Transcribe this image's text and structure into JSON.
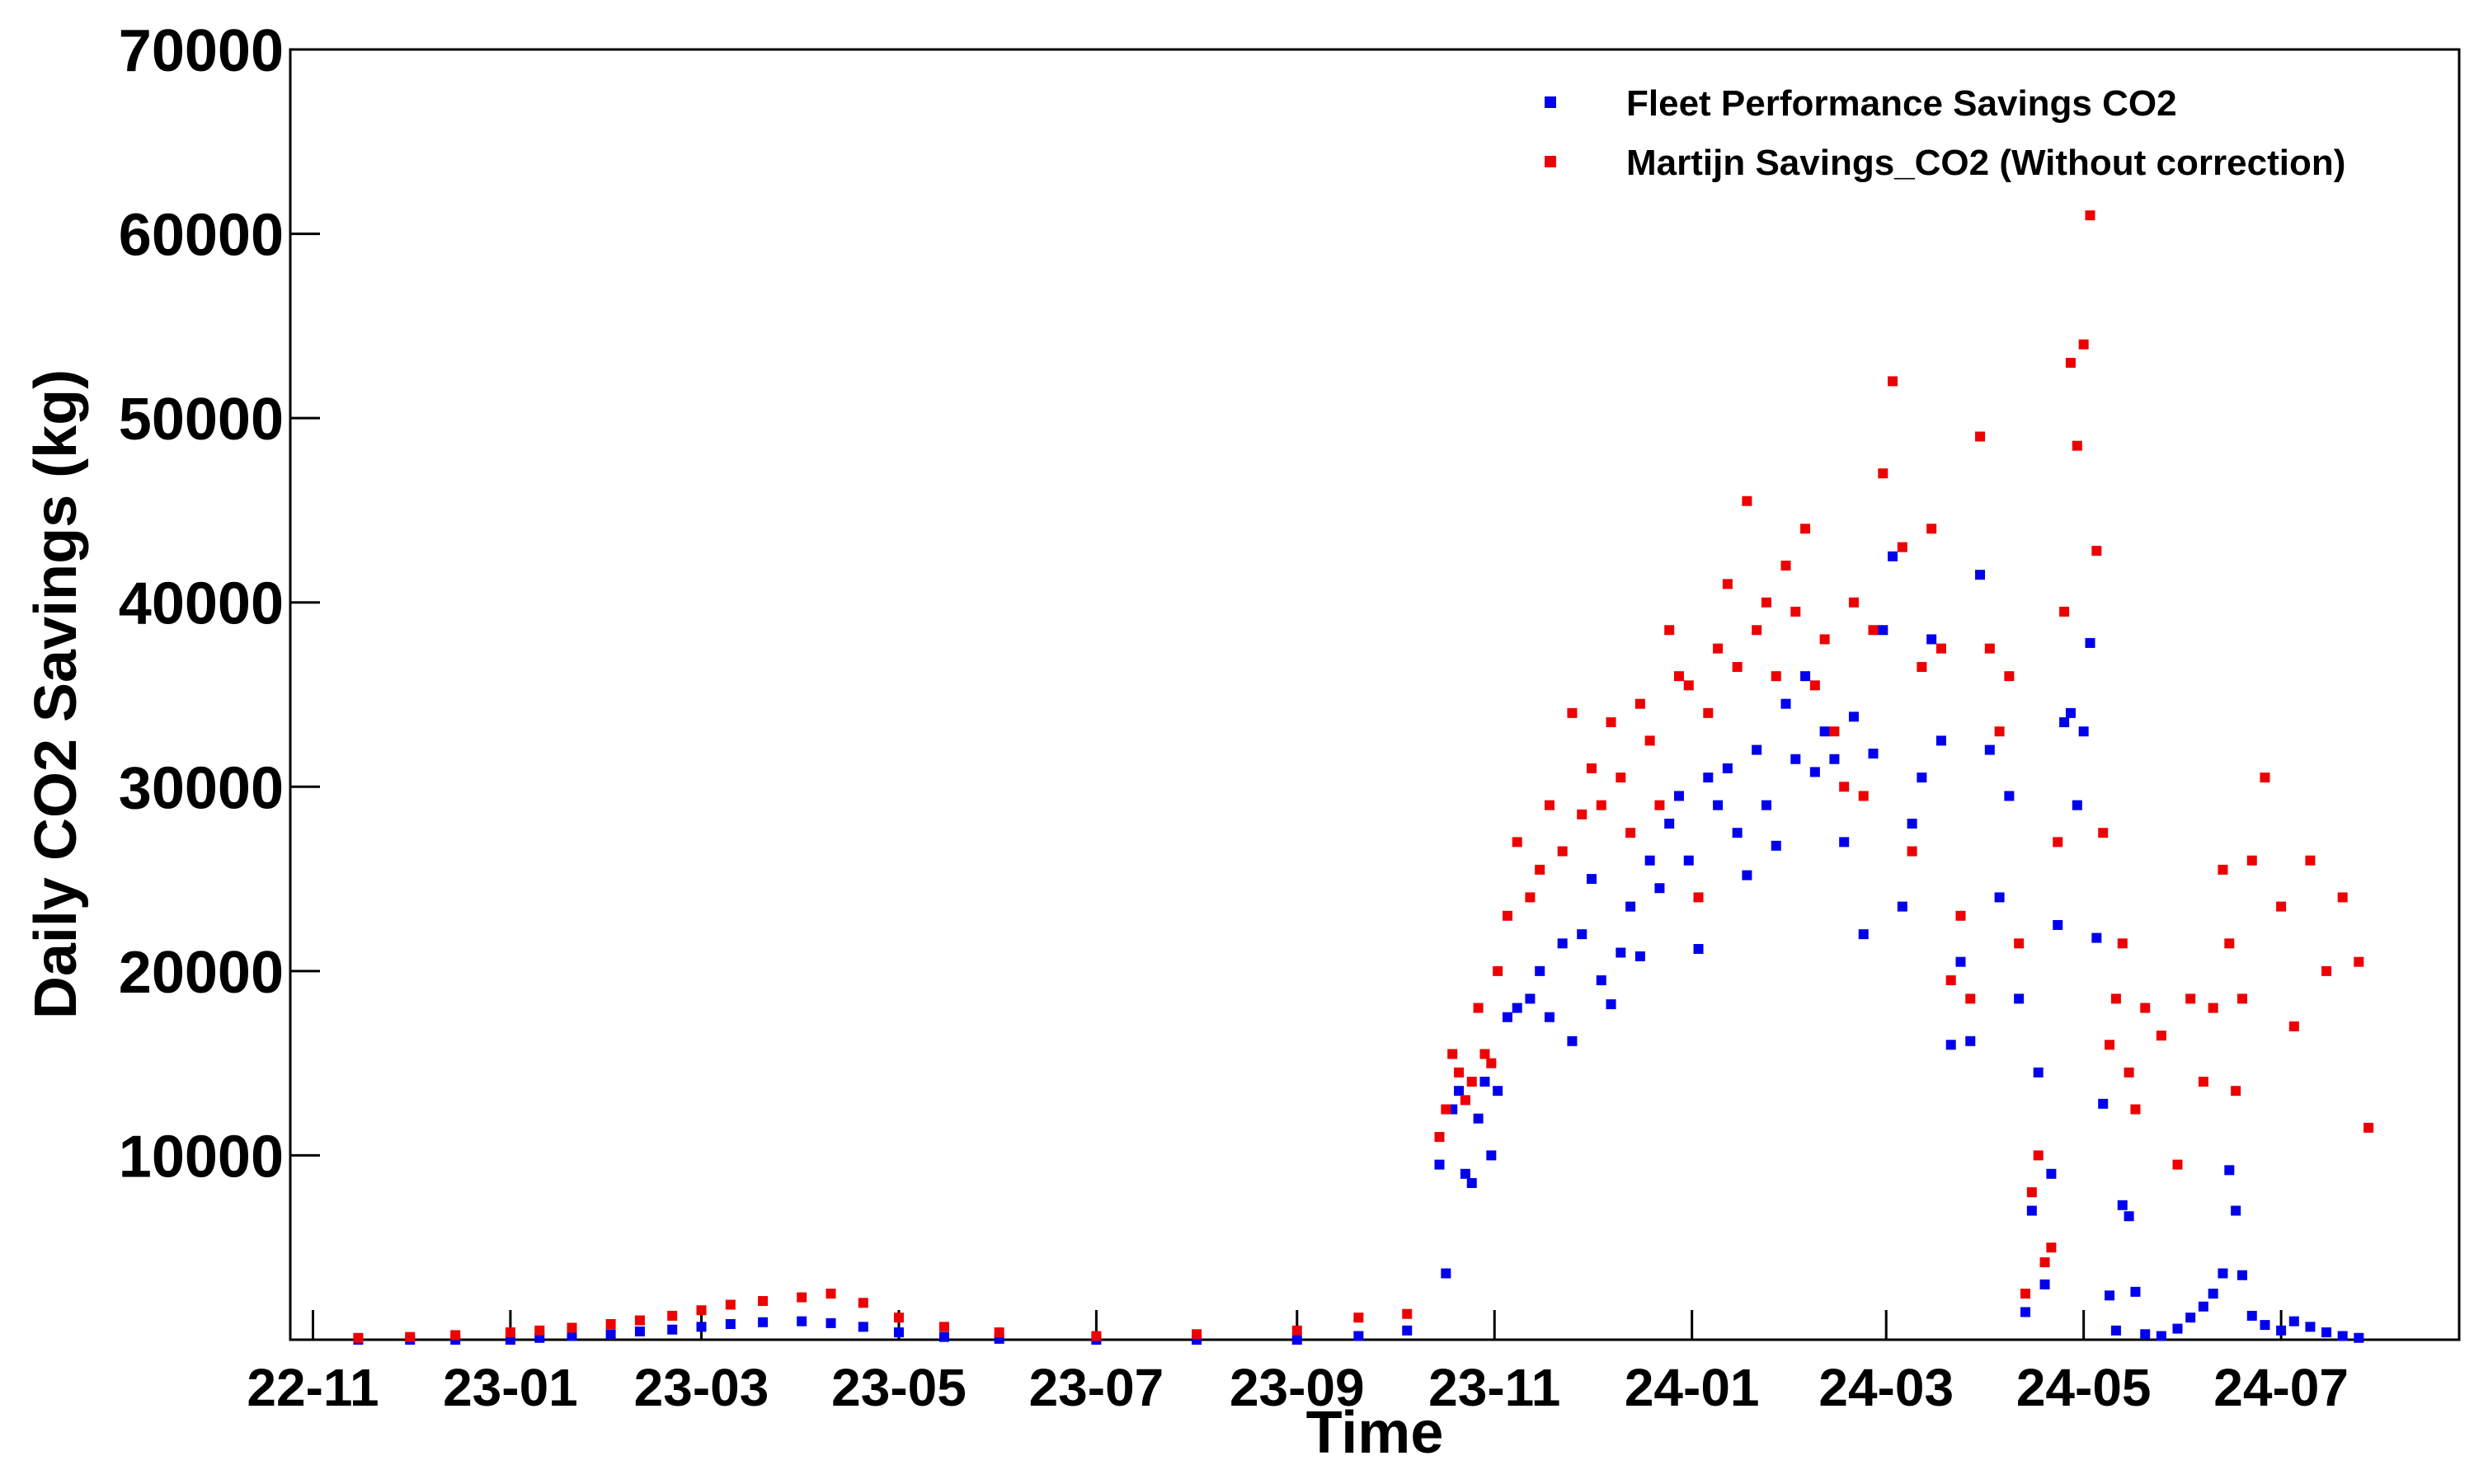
{
  "chart_data": {
    "type": "scatter",
    "title": "",
    "xlabel": "Time",
    "ylabel": "Daily CO2 Savings (kg)",
    "xlim": [
      "2022-10-25",
      "2024-08-25"
    ],
    "ylim": [
      0,
      70000
    ],
    "x_ticks": [
      "22-11",
      "23-01",
      "23-03",
      "23-05",
      "23-07",
      "23-09",
      "23-11",
      "24-01",
      "24-03",
      "24-05",
      "24-07"
    ],
    "x_tick_dates": [
      "2022-11-01",
      "2023-01-01",
      "2023-03-01",
      "2023-05-01",
      "2023-07-01",
      "2023-09-01",
      "2023-11-01",
      "2024-01-01",
      "2024-03-01",
      "2024-05-01",
      "2024-07-01"
    ],
    "y_ticks": [
      10000,
      20000,
      30000,
      40000,
      50000,
      60000,
      70000
    ],
    "y_tick_labels": [
      "10000",
      "20000",
      "30000",
      "40000",
      "50000",
      "60000",
      "70000"
    ],
    "grid": false,
    "legend_position": "top-right",
    "series": [
      {
        "name": "Fleet Performance Savings CO2",
        "color": "#0000ee",
        "points": [
          [
            "2022-11-15",
            0
          ],
          [
            "2022-12-01",
            0
          ],
          [
            "2022-12-15",
            0
          ],
          [
            "2023-01-01",
            0
          ],
          [
            "2023-01-10",
            100
          ],
          [
            "2023-01-20",
            200
          ],
          [
            "2023-02-01",
            300
          ],
          [
            "2023-02-10",
            450
          ],
          [
            "2023-02-20",
            550
          ],
          [
            "2023-03-01",
            700
          ],
          [
            "2023-03-10",
            850
          ],
          [
            "2023-03-20",
            950
          ],
          [
            "2023-04-01",
            1000
          ],
          [
            "2023-04-10",
            900
          ],
          [
            "2023-04-20",
            700
          ],
          [
            "2023-05-01",
            400
          ],
          [
            "2023-05-15",
            150
          ],
          [
            "2023-06-01",
            50
          ],
          [
            "2023-07-01",
            0
          ],
          [
            "2023-08-01",
            0
          ],
          [
            "2023-09-01",
            0
          ],
          [
            "2023-09-20",
            200
          ],
          [
            "2023-10-05",
            500
          ],
          [
            "2023-10-15",
            9500
          ],
          [
            "2023-10-17",
            3600
          ],
          [
            "2023-10-19",
            12500
          ],
          [
            "2023-10-21",
            13500
          ],
          [
            "2023-10-23",
            9000
          ],
          [
            "2023-10-25",
            8500
          ],
          [
            "2023-10-27",
            12000
          ],
          [
            "2023-10-29",
            14000
          ],
          [
            "2023-10-31",
            10000
          ],
          [
            "2023-11-02",
            13500
          ],
          [
            "2023-11-05",
            17500
          ],
          [
            "2023-11-08",
            18000
          ],
          [
            "2023-11-12",
            18500
          ],
          [
            "2023-11-15",
            20000
          ],
          [
            "2023-11-18",
            17500
          ],
          [
            "2023-11-22",
            21500
          ],
          [
            "2023-11-25",
            16200
          ],
          [
            "2023-11-28",
            22000
          ],
          [
            "2023-12-01",
            25000
          ],
          [
            "2023-12-04",
            19500
          ],
          [
            "2023-12-07",
            18200
          ],
          [
            "2023-12-10",
            21000
          ],
          [
            "2023-12-13",
            23500
          ],
          [
            "2023-12-16",
            20800
          ],
          [
            "2023-12-19",
            26000
          ],
          [
            "2023-12-22",
            24500
          ],
          [
            "2023-12-25",
            28000
          ],
          [
            "2023-12-28",
            29500
          ],
          [
            "2023-12-31",
            26000
          ],
          [
            "2024-01-03",
            21200
          ],
          [
            "2024-01-06",
            30500
          ],
          [
            "2024-01-09",
            29000
          ],
          [
            "2024-01-12",
            31000
          ],
          [
            "2024-01-15",
            27500
          ],
          [
            "2024-01-18",
            25200
          ],
          [
            "2024-01-21",
            32000
          ],
          [
            "2024-01-24",
            29000
          ],
          [
            "2024-01-27",
            26800
          ],
          [
            "2024-01-30",
            34500
          ],
          [
            "2024-02-02",
            31500
          ],
          [
            "2024-02-05",
            36000
          ],
          [
            "2024-02-08",
            30800
          ],
          [
            "2024-02-11",
            33000
          ],
          [
            "2024-02-14",
            31500
          ],
          [
            "2024-02-17",
            27000
          ],
          [
            "2024-02-20",
            33800
          ],
          [
            "2024-02-23",
            22000
          ],
          [
            "2024-02-26",
            31800
          ],
          [
            "2024-02-29",
            38500
          ],
          [
            "2024-03-03",
            42500
          ],
          [
            "2024-03-06",
            23500
          ],
          [
            "2024-03-09",
            28000
          ],
          [
            "2024-03-12",
            30500
          ],
          [
            "2024-03-15",
            38000
          ],
          [
            "2024-03-18",
            32500
          ],
          [
            "2024-03-21",
            16000
          ],
          [
            "2024-03-24",
            20500
          ],
          [
            "2024-03-27",
            16200
          ],
          [
            "2024-03-30",
            41500
          ],
          [
            "2024-04-02",
            32000
          ],
          [
            "2024-04-05",
            24000
          ],
          [
            "2024-04-08",
            29500
          ],
          [
            "2024-04-11",
            18500
          ],
          [
            "2024-04-13",
            1500
          ],
          [
            "2024-04-15",
            7000
          ],
          [
            "2024-04-17",
            14500
          ],
          [
            "2024-04-19",
            3000
          ],
          [
            "2024-04-21",
            9000
          ],
          [
            "2024-04-23",
            22500
          ],
          [
            "2024-04-25",
            33500
          ],
          [
            "2024-04-27",
            34000
          ],
          [
            "2024-04-29",
            29000
          ],
          [
            "2024-05-01",
            33000
          ],
          [
            "2024-05-03",
            37800
          ],
          [
            "2024-05-05",
            21800
          ],
          [
            "2024-05-07",
            12800
          ],
          [
            "2024-05-09",
            2400
          ],
          [
            "2024-05-11",
            500
          ],
          [
            "2024-05-13",
            7300
          ],
          [
            "2024-05-15",
            6700
          ],
          [
            "2024-05-17",
            2600
          ],
          [
            "2024-05-20",
            300
          ],
          [
            "2024-05-25",
            200
          ],
          [
            "2024-05-30",
            600
          ],
          [
            "2024-06-03",
            1200
          ],
          [
            "2024-06-07",
            1800
          ],
          [
            "2024-06-10",
            2500
          ],
          [
            "2024-06-13",
            3600
          ],
          [
            "2024-06-15",
            9200
          ],
          [
            "2024-06-17",
            7000
          ],
          [
            "2024-06-19",
            3500
          ],
          [
            "2024-06-22",
            1300
          ],
          [
            "2024-06-26",
            800
          ],
          [
            "2024-07-01",
            500
          ],
          [
            "2024-07-05",
            1000
          ],
          [
            "2024-07-10",
            700
          ],
          [
            "2024-07-15",
            400
          ],
          [
            "2024-07-20",
            200
          ],
          [
            "2024-07-25",
            100
          ]
        ]
      },
      {
        "name": "Martijn Savings_CO2 (Without correction)",
        "color": "#ee0000",
        "points": [
          [
            "2022-11-15",
            100
          ],
          [
            "2022-12-01",
            150
          ],
          [
            "2022-12-15",
            250
          ],
          [
            "2023-01-01",
            400
          ],
          [
            "2023-01-10",
            500
          ],
          [
            "2023-01-20",
            650
          ],
          [
            "2023-02-01",
            850
          ],
          [
            "2023-02-10",
            1050
          ],
          [
            "2023-02-20",
            1300
          ],
          [
            "2023-03-01",
            1600
          ],
          [
            "2023-03-10",
            1900
          ],
          [
            "2023-03-20",
            2100
          ],
          [
            "2023-04-01",
            2300
          ],
          [
            "2023-04-10",
            2500
          ],
          [
            "2023-04-20",
            2000
          ],
          [
            "2023-05-01",
            1200
          ],
          [
            "2023-05-15",
            700
          ],
          [
            "2023-06-01",
            400
          ],
          [
            "2023-07-01",
            200
          ],
          [
            "2023-08-01",
            300
          ],
          [
            "2023-09-01",
            500
          ],
          [
            "2023-09-20",
            1200
          ],
          [
            "2023-10-05",
            1400
          ],
          [
            "2023-10-15",
            11000
          ],
          [
            "2023-10-17",
            12500
          ],
          [
            "2023-10-19",
            15500
          ],
          [
            "2023-10-21",
            14500
          ],
          [
            "2023-10-23",
            13000
          ],
          [
            "2023-10-25",
            14000
          ],
          [
            "2023-10-27",
            18000
          ],
          [
            "2023-10-29",
            15500
          ],
          [
            "2023-10-31",
            15000
          ],
          [
            "2023-11-02",
            20000
          ],
          [
            "2023-11-05",
            23000
          ],
          [
            "2023-11-08",
            27000
          ],
          [
            "2023-11-12",
            24000
          ],
          [
            "2023-11-15",
            25500
          ],
          [
            "2023-11-18",
            29000
          ],
          [
            "2023-11-22",
            26500
          ],
          [
            "2023-11-25",
            34000
          ],
          [
            "2023-11-28",
            28500
          ],
          [
            "2023-12-01",
            31000
          ],
          [
            "2023-12-04",
            29000
          ],
          [
            "2023-12-07",
            33500
          ],
          [
            "2023-12-10",
            30500
          ],
          [
            "2023-12-13",
            27500
          ],
          [
            "2023-12-16",
            34500
          ],
          [
            "2023-12-19",
            32500
          ],
          [
            "2023-12-22",
            29000
          ],
          [
            "2023-12-25",
            38500
          ],
          [
            "2023-12-28",
            36000
          ],
          [
            "2023-12-31",
            35500
          ],
          [
            "2024-01-03",
            24000
          ],
          [
            "2024-01-06",
            34000
          ],
          [
            "2024-01-09",
            37500
          ],
          [
            "2024-01-12",
            41000
          ],
          [
            "2024-01-15",
            36500
          ],
          [
            "2024-01-18",
            45500
          ],
          [
            "2024-01-21",
            38500
          ],
          [
            "2024-01-24",
            40000
          ],
          [
            "2024-01-27",
            36000
          ],
          [
            "2024-01-30",
            42000
          ],
          [
            "2024-02-02",
            39500
          ],
          [
            "2024-02-05",
            44000
          ],
          [
            "2024-02-08",
            35500
          ],
          [
            "2024-02-11",
            38000
          ],
          [
            "2024-02-14",
            33000
          ],
          [
            "2024-02-17",
            30000
          ],
          [
            "2024-02-20",
            40000
          ],
          [
            "2024-02-23",
            29500
          ],
          [
            "2024-02-26",
            38500
          ],
          [
            "2024-02-29",
            47000
          ],
          [
            "2024-03-03",
            52000
          ],
          [
            "2024-03-06",
            43000
          ],
          [
            "2024-03-09",
            26500
          ],
          [
            "2024-03-12",
            36500
          ],
          [
            "2024-03-15",
            44000
          ],
          [
            "2024-03-18",
            37500
          ],
          [
            "2024-03-21",
            19500
          ],
          [
            "2024-03-24",
            23000
          ],
          [
            "2024-03-27",
            18500
          ],
          [
            "2024-03-30",
            49000
          ],
          [
            "2024-04-02",
            37500
          ],
          [
            "2024-04-05",
            33000
          ],
          [
            "2024-04-08",
            36000
          ],
          [
            "2024-04-11",
            21500
          ],
          [
            "2024-04-13",
            2500
          ],
          [
            "2024-04-15",
            8000
          ],
          [
            "2024-04-17",
            10000
          ],
          [
            "2024-04-19",
            4200
          ],
          [
            "2024-04-21",
            5000
          ],
          [
            "2024-04-23",
            27000
          ],
          [
            "2024-04-25",
            39500
          ],
          [
            "2024-04-27",
            53000
          ],
          [
            "2024-04-29",
            48500
          ],
          [
            "2024-05-01",
            54000
          ],
          [
            "2024-05-03",
            61000
          ],
          [
            "2024-05-05",
            42800
          ],
          [
            "2024-05-07",
            27500
          ],
          [
            "2024-05-09",
            16000
          ],
          [
            "2024-05-11",
            18500
          ],
          [
            "2024-05-13",
            21500
          ],
          [
            "2024-05-15",
            14500
          ],
          [
            "2024-05-17",
            12500
          ],
          [
            "2024-05-20",
            18000
          ],
          [
            "2024-05-25",
            16500
          ],
          [
            "2024-05-30",
            9500
          ],
          [
            "2024-06-03",
            18500
          ],
          [
            "2024-06-07",
            14000
          ],
          [
            "2024-06-10",
            18000
          ],
          [
            "2024-06-13",
            25500
          ],
          [
            "2024-06-15",
            21500
          ],
          [
            "2024-06-17",
            13500
          ],
          [
            "2024-06-19",
            18500
          ],
          [
            "2024-06-22",
            26000
          ],
          [
            "2024-06-26",
            30500
          ],
          [
            "2024-07-01",
            23500
          ],
          [
            "2024-07-05",
            17000
          ],
          [
            "2024-07-10",
            26000
          ],
          [
            "2024-07-15",
            20000
          ],
          [
            "2024-07-20",
            24000
          ],
          [
            "2024-07-25",
            20500
          ],
          [
            "2024-07-28",
            11500
          ]
        ]
      }
    ]
  }
}
